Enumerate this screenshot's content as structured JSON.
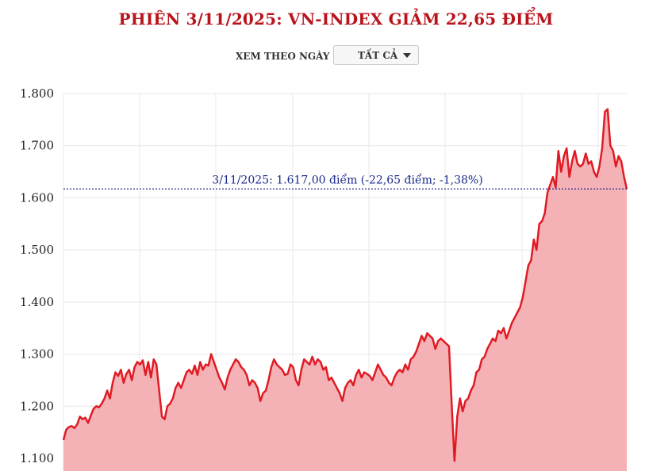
{
  "title": "PHIÊN 3/11/2025: VN-INDEX GIẢM 22,65 ĐIỂM",
  "filter": {
    "label": "XEM THEO NGÀY",
    "selected": "TẤT CẢ"
  },
  "colors": {
    "line": "#e01b24",
    "area": "#f4b2b6",
    "title": "#b8141b",
    "reference": "#1a2a8c",
    "grid": "#e8e8e8"
  },
  "chart_data": {
    "type": "area",
    "title": "PHIÊN 3/11/2025: VN-INDEX GIẢM 22,65 ĐIỂM",
    "xlabel": "",
    "ylabel": "",
    "ylim": [
      1085,
      1820
    ],
    "yticks": [
      1100,
      1200,
      1300,
      1400,
      1500,
      1600,
      1700,
      1800
    ],
    "ytick_labels": [
      "1.100",
      "1.200",
      "1.300",
      "1.400",
      "1.500",
      "1.600",
      "1.700",
      "1.800"
    ],
    "grid": true,
    "reference_line": {
      "value": 1617,
      "label": "3/11/2025: 1.617,00 điểm (-22,65 điểm; -1,38%)"
    },
    "series": [
      {
        "values": [
          1135,
          1155,
          1160,
          1162,
          1158,
          1165,
          1180,
          1175,
          1178,
          1168,
          1182,
          1195,
          1200,
          1198,
          1205,
          1215,
          1230,
          1215,
          1245,
          1265,
          1258,
          1270,
          1245,
          1262,
          1270,
          1250,
          1275,
          1285,
          1280,
          1288,
          1260,
          1285,
          1255,
          1290,
          1280,
          1230,
          1180,
          1175,
          1200,
          1205,
          1215,
          1235,
          1245,
          1235,
          1250,
          1265,
          1270,
          1262,
          1278,
          1260,
          1285,
          1270,
          1280,
          1278,
          1300,
          1285,
          1270,
          1255,
          1245,
          1232,
          1255,
          1270,
          1280,
          1290,
          1285,
          1275,
          1270,
          1260,
          1240,
          1250,
          1245,
          1235,
          1210,
          1225,
          1230,
          1250,
          1275,
          1290,
          1280,
          1275,
          1270,
          1260,
          1262,
          1280,
          1275,
          1250,
          1240,
          1270,
          1290,
          1285,
          1280,
          1295,
          1280,
          1290,
          1285,
          1270,
          1275,
          1250,
          1255,
          1245,
          1235,
          1225,
          1210,
          1235,
          1245,
          1250,
          1240,
          1260,
          1270,
          1255,
          1265,
          1262,
          1258,
          1250,
          1265,
          1280,
          1270,
          1260,
          1255,
          1245,
          1240,
          1255,
          1265,
          1270,
          1265,
          1280,
          1270,
          1290,
          1295,
          1305,
          1320,
          1335,
          1325,
          1340,
          1335,
          1330,
          1310,
          1325,
          1330,
          1325,
          1320,
          1315,
          1200,
          1095,
          1180,
          1215,
          1190,
          1210,
          1215,
          1230,
          1240,
          1265,
          1270,
          1290,
          1295,
          1310,
          1320,
          1330,
          1325,
          1345,
          1340,
          1350,
          1330,
          1345,
          1360,
          1370,
          1380,
          1390,
          1410,
          1440,
          1470,
          1480,
          1520,
          1500,
          1550,
          1555,
          1570,
          1610,
          1625,
          1640,
          1620,
          1690,
          1650,
          1680,
          1695,
          1640,
          1670,
          1690,
          1665,
          1660,
          1665,
          1685,
          1665,
          1670,
          1650,
          1640,
          1660,
          1695,
          1765,
          1770,
          1700,
          1690,
          1660,
          1680,
          1670,
          1640,
          1617
        ]
      }
    ]
  }
}
